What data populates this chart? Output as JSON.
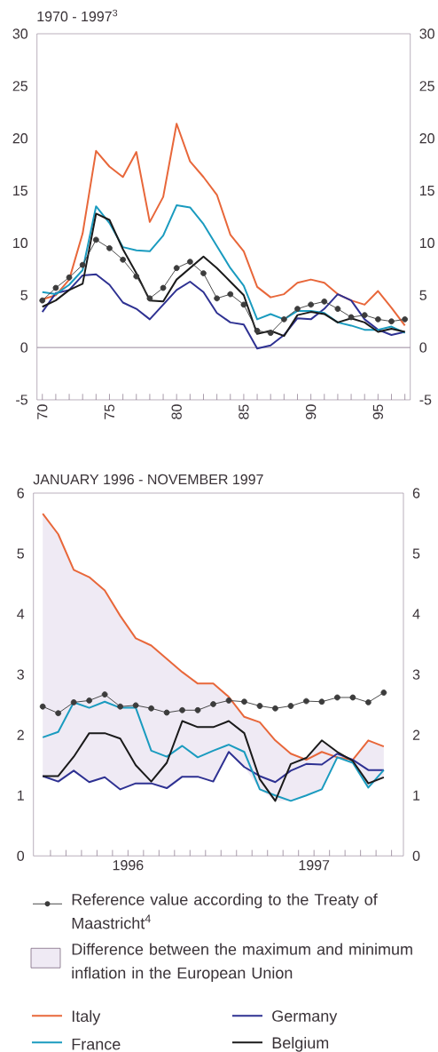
{
  "chart_data": [
    {
      "type": "line",
      "title": "1970 - 1997$^{3}$",
      "x": [
        1970,
        1971,
        1972,
        1973,
        1974,
        1975,
        1976,
        1977,
        1978,
        1979,
        1980,
        1981,
        1982,
        1983,
        1984,
        1985,
        1986,
        1987,
        1988,
        1989,
        1990,
        1991,
        1992,
        1993,
        1994,
        1995,
        1996,
        1997
      ],
      "xlim": [
        1969.6,
        1997.4
      ],
      "xticks": [
        {
          "value": 1970,
          "label": "70"
        },
        {
          "value": 1971,
          "label": null
        },
        {
          "value": 1972,
          "label": null
        },
        {
          "value": 1973,
          "label": null
        },
        {
          "value": 1974,
          "label": null
        },
        {
          "value": 1975,
          "label": "75"
        },
        {
          "value": 1976,
          "label": null
        },
        {
          "value": 1977,
          "label": null
        },
        {
          "value": 1978,
          "label": null
        },
        {
          "value": 1979,
          "label": null
        },
        {
          "value": 1980,
          "label": "80"
        },
        {
          "value": 1981,
          "label": null
        },
        {
          "value": 1982,
          "label": null
        },
        {
          "value": 1983,
          "label": null
        },
        {
          "value": 1984,
          "label": null
        },
        {
          "value": 1985,
          "label": "85"
        },
        {
          "value": 1986,
          "label": null
        },
        {
          "value": 1987,
          "label": null
        },
        {
          "value": 1988,
          "label": null
        },
        {
          "value": 1989,
          "label": null
        },
        {
          "value": 1990,
          "label": "90"
        },
        {
          "value": 1991,
          "label": null
        },
        {
          "value": 1992,
          "label": null
        },
        {
          "value": 1993,
          "label": null
        },
        {
          "value": 1994,
          "label": null
        },
        {
          "value": 1995,
          "label": "95"
        },
        {
          "value": 1996,
          "label": null
        },
        {
          "value": 1997,
          "label": null
        }
      ],
      "ylim": [
        -5,
        30
      ],
      "yticks": [
        -5,
        0,
        5,
        10,
        15,
        20,
        25,
        30
      ],
      "y2lim": [
        -5,
        30
      ],
      "y2ticks": [
        -5,
        0,
        5,
        10,
        15,
        20,
        25,
        30
      ],
      "ref_lines": [
        {
          "axis": "y",
          "value": 0,
          "color": "#7d6a80"
        }
      ],
      "series": [
        {
          "color": "#e8673a",
          "values": [
            4.6,
            5.0,
            6.5,
            10.9,
            18.8,
            17.3,
            16.3,
            18.7,
            12.0,
            14.4,
            21.4,
            17.8,
            16.3,
            14.6,
            10.8,
            9.2,
            5.8,
            4.8,
            5.1,
            6.2,
            6.5,
            6.2,
            5.1,
            4.5,
            4.1,
            5.4,
            3.8,
            2.1
          ]
        },
        {
          "color": "#2e3192",
          "values": [
            3.4,
            5.2,
            5.5,
            6.9,
            7.0,
            6.0,
            4.3,
            3.7,
            2.7,
            4.1,
            5.5,
            6.3,
            5.3,
            3.3,
            2.4,
            2.2,
            -0.1,
            0.2,
            1.2,
            2.8,
            2.7,
            3.7,
            5.1,
            4.5,
            2.7,
            1.7,
            1.2,
            1.5
          ]
        },
        {
          "color": "#1a9bbf",
          "values": [
            5.3,
            5.1,
            6.0,
            7.4,
            13.5,
            11.9,
            9.6,
            9.3,
            9.2,
            10.7,
            13.6,
            13.4,
            11.8,
            9.7,
            7.6,
            5.9,
            2.7,
            3.2,
            2.7,
            3.5,
            3.5,
            3.3,
            2.4,
            2.1,
            1.7,
            1.7,
            2.0,
            1.4
          ]
        },
        {
          "color": "#1a1a1a",
          "values": [
            3.9,
            4.5,
            5.5,
            6.1,
            12.8,
            12.2,
            9.4,
            7.1,
            4.5,
            4.4,
            6.5,
            7.6,
            8.7,
            7.6,
            6.3,
            5.0,
            1.3,
            1.6,
            1.1,
            3.1,
            3.4,
            3.2,
            2.4,
            2.8,
            2.4,
            1.5,
            1.8,
            1.5
          ]
        },
        {
          "color": "#3c3c3c",
          "marker": "circle",
          "values": [
            4.5,
            5.7,
            6.7,
            7.9,
            10.3,
            9.5,
            8.4,
            6.8,
            4.7,
            5.7,
            7.6,
            8.2,
            7.1,
            4.7,
            5.1,
            4.1,
            1.6,
            1.4,
            2.7,
            3.7,
            4.1,
            4.4,
            3.7,
            2.9,
            3.1,
            2.7,
            2.5,
            2.7
          ]
        }
      ]
    },
    {
      "type": "line",
      "title": "JANUARY 1996 - NOVEMBER 1997",
      "x": [
        "1996-01",
        "1996-02",
        "1996-03",
        "1996-04",
        "1996-05",
        "1996-06",
        "1996-07",
        "1996-08",
        "1996-09",
        "1996-10",
        "1996-11",
        "1996-12",
        "1997-01",
        "1997-02",
        "1997-03",
        "1997-04",
        "1997-05",
        "1997-06",
        "1997-07",
        "1997-08",
        "1997-09",
        "1997-10",
        "1997-11"
      ],
      "xlim": [
        "1995-12-13",
        "1997-12-09"
      ],
      "xticks": [
        {
          "value": "1996-01-16",
          "label": null
        },
        {
          "value": "1996-02-16",
          "label": null
        },
        {
          "value": "1996-03-16",
          "label": null
        },
        {
          "value": "1996-04-16",
          "label": null
        },
        {
          "value": "1996-05-16",
          "label": null
        },
        {
          "value": "1996-06-16",
          "label": "1996"
        },
        {
          "value": "1996-07-16",
          "label": null
        },
        {
          "value": "1996-08-16",
          "label": null
        },
        {
          "value": "1996-09-16",
          "label": null
        },
        {
          "value": "1996-10-16",
          "label": null
        },
        {
          "value": "1996-11-16",
          "label": null
        },
        {
          "value": "1996-12-16",
          "label": null
        },
        {
          "value": "1997-01-16",
          "label": null
        },
        {
          "value": "1997-02-16",
          "label": null
        },
        {
          "value": "1997-03-16",
          "label": null
        },
        {
          "value": "1997-04-16",
          "label": null
        },
        {
          "value": "1997-05-16",
          "label": null
        },
        {
          "value": "1997-06-16",
          "label": "1997"
        },
        {
          "value": "1997-07-16",
          "label": null
        },
        {
          "value": "1997-08-16",
          "label": null
        },
        {
          "value": "1997-09-16",
          "label": null
        },
        {
          "value": "1997-10-16",
          "label": null
        },
        {
          "value": "1997-11-16",
          "label": null
        }
      ],
      "ylim": [
        0,
        6
      ],
      "yticks": [
        0,
        1,
        2,
        3,
        4,
        5,
        6
      ],
      "y2lim": [
        0,
        6
      ],
      "y2ticks": [
        0,
        1,
        2,
        3,
        4,
        5,
        6
      ],
      "legend": "bottom",
      "series": [
        {
          "name": "Reference value according to the Treaty of Maastricht$^{4}$",
          "color": "#3c3c3c",
          "marker": "circle",
          "values": [
            2.47,
            2.36,
            2.54,
            2.57,
            2.67,
            2.47,
            2.49,
            2.44,
            2.37,
            2.41,
            2.41,
            2.51,
            2.57,
            2.55,
            2.48,
            2.44,
            2.48,
            2.56,
            2.55,
            2.62,
            2.62,
            2.54,
            2.7
          ]
        },
        {
          "name": "Difference between the maximum and minimum inflation in the European Union",
          "type": "area",
          "color": "#efeaf4",
          "lower": [
            1.32,
            1.23,
            1.41,
            1.22,
            1.3,
            1.1,
            1.2,
            1.2,
            1.12,
            1.31,
            1.31,
            1.23,
            1.72,
            1.47,
            1.1,
            0.91,
            0.91,
            1.0,
            1.1,
            1.63,
            1.54,
            1.13,
            1.3
          ],
          "upper": [
            5.66,
            5.32,
            4.73,
            4.61,
            4.39,
            3.97,
            3.6,
            3.48,
            3.26,
            3.04,
            2.85,
            2.85,
            2.63,
            2.3,
            2.21,
            1.91,
            1.69,
            1.62,
            1.91,
            1.72,
            1.59,
            1.91,
            1.81
          ],
          "values": [
            null,
            null,
            null,
            null,
            null,
            null,
            null,
            null,
            null,
            null,
            null,
            null,
            null,
            null,
            null,
            null,
            null,
            null,
            null,
            null,
            null,
            null,
            null
          ]
        },
        {
          "name": "Italy",
          "color": "#e8673a",
          "values": [
            5.66,
            5.32,
            4.73,
            4.61,
            4.39,
            3.97,
            3.6,
            3.48,
            3.26,
            3.04,
            2.85,
            2.85,
            2.63,
            2.3,
            2.21,
            1.91,
            1.69,
            1.59,
            1.72,
            1.63,
            1.59,
            1.91,
            1.81
          ]
        },
        {
          "name": "Germany",
          "color": "#2e3192",
          "values": [
            1.32,
            1.23,
            1.41,
            1.22,
            1.3,
            1.1,
            1.2,
            1.2,
            1.12,
            1.31,
            1.31,
            1.23,
            1.72,
            1.47,
            1.32,
            1.22,
            1.41,
            1.52,
            1.51,
            1.69,
            1.59,
            1.42,
            1.42
          ]
        },
        {
          "name": "France",
          "color": "#1a9bbf",
          "values": [
            1.96,
            2.05,
            2.54,
            2.45,
            2.55,
            2.45,
            2.45,
            1.74,
            1.64,
            1.82,
            1.63,
            1.74,
            1.84,
            1.72,
            1.1,
            1.0,
            0.91,
            1.0,
            1.1,
            1.63,
            1.54,
            1.13,
            1.42
          ]
        },
        {
          "name": "Belgium",
          "color": "#1a1a1a",
          "values": [
            1.32,
            1.32,
            1.64,
            2.03,
            2.03,
            1.94,
            1.5,
            1.23,
            1.54,
            2.23,
            2.13,
            2.13,
            2.23,
            2.03,
            1.27,
            0.91,
            1.52,
            1.62,
            1.91,
            1.72,
            1.57,
            1.2,
            1.3
          ]
        }
      ]
    }
  ]
}
